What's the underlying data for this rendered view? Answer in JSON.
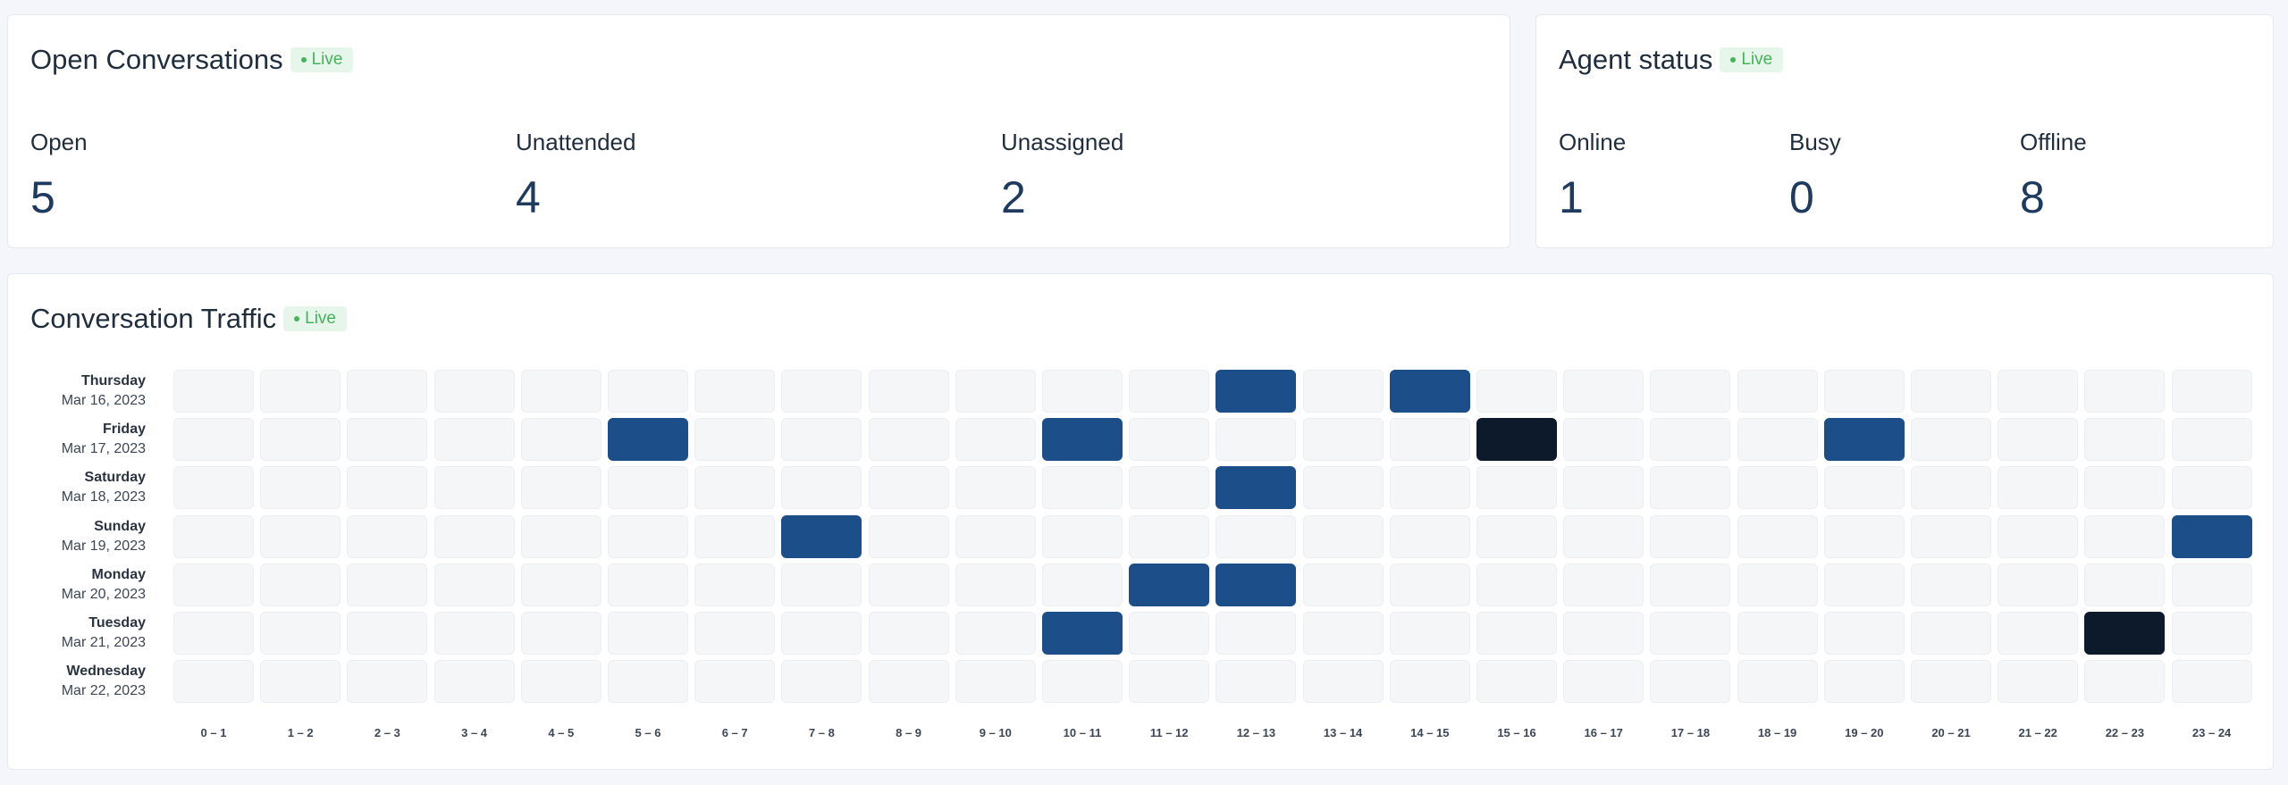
{
  "open_conversations": {
    "title": "Open Conversations",
    "live_label": "Live",
    "metrics": [
      {
        "label": "Open",
        "value": "5"
      },
      {
        "label": "Unattended",
        "value": "4"
      },
      {
        "label": "Unassigned",
        "value": "2"
      }
    ]
  },
  "agent_status": {
    "title": "Agent status",
    "live_label": "Live",
    "metrics": [
      {
        "label": "Online",
        "value": "1"
      },
      {
        "label": "Busy",
        "value": "0"
      },
      {
        "label": "Offline",
        "value": "8"
      }
    ]
  },
  "traffic": {
    "title": "Conversation Traffic",
    "live_label": "Live"
  },
  "colors": {
    "live_green": "#44b35a",
    "cell_empty": "#f5f6f8",
    "cell_low": "#1c4e8a",
    "cell_high": "#0c1a2b"
  },
  "chart_data": {
    "type": "heatmap",
    "x": [
      "0 – 1",
      "1 – 2",
      "2 – 3",
      "3 – 4",
      "4 – 5",
      "5 – 6",
      "6 – 7",
      "7 – 8",
      "8 – 9",
      "9 – 10",
      "10 – 11",
      "11 – 12",
      "12 – 13",
      "13 – 14",
      "14 – 15",
      "15 – 16",
      "16 – 17",
      "17 – 18",
      "18 – 19",
      "19 – 20",
      "20 – 21",
      "21 – 22",
      "22 – 23",
      "23 – 24"
    ],
    "rows": [
      {
        "day": "Thursday",
        "date": "Mar 16, 2023"
      },
      {
        "day": "Friday",
        "date": "Mar 17, 2023"
      },
      {
        "day": "Saturday",
        "date": "Mar 18, 2023"
      },
      {
        "day": "Sunday",
        "date": "Mar 19, 2023"
      },
      {
        "day": "Monday",
        "date": "Mar 20, 2023"
      },
      {
        "day": "Tuesday",
        "date": "Mar 21, 2023"
      },
      {
        "day": "Wednesday",
        "date": "Mar 22, 2023"
      }
    ],
    "values": [
      [
        0,
        0,
        0,
        0,
        0,
        0,
        0,
        0,
        0,
        0,
        0,
        0,
        1,
        0,
        1,
        0,
        0,
        0,
        0,
        0,
        0,
        0,
        0,
        0
      ],
      [
        0,
        0,
        0,
        0,
        0,
        1,
        0,
        0,
        0,
        0,
        1,
        0,
        0,
        0,
        0,
        2,
        0,
        0,
        0,
        1,
        0,
        0,
        0,
        0
      ],
      [
        0,
        0,
        0,
        0,
        0,
        0,
        0,
        0,
        0,
        0,
        0,
        0,
        1,
        0,
        0,
        0,
        0,
        0,
        0,
        0,
        0,
        0,
        0,
        0
      ],
      [
        0,
        0,
        0,
        0,
        0,
        0,
        0,
        1,
        0,
        0,
        0,
        0,
        0,
        0,
        0,
        0,
        0,
        0,
        0,
        0,
        0,
        0,
        0,
        1
      ],
      [
        0,
        0,
        0,
        0,
        0,
        0,
        0,
        0,
        0,
        0,
        0,
        1,
        1,
        0,
        0,
        0,
        0,
        0,
        0,
        0,
        0,
        0,
        0,
        0
      ],
      [
        0,
        0,
        0,
        0,
        0,
        0,
        0,
        0,
        0,
        0,
        1,
        0,
        0,
        0,
        0,
        0,
        0,
        0,
        0,
        0,
        0,
        0,
        2,
        0
      ],
      [
        0,
        0,
        0,
        0,
        0,
        0,
        0,
        0,
        0,
        0,
        0,
        0,
        0,
        0,
        0,
        0,
        0,
        0,
        0,
        0,
        0,
        0,
        0,
        0
      ]
    ]
  }
}
